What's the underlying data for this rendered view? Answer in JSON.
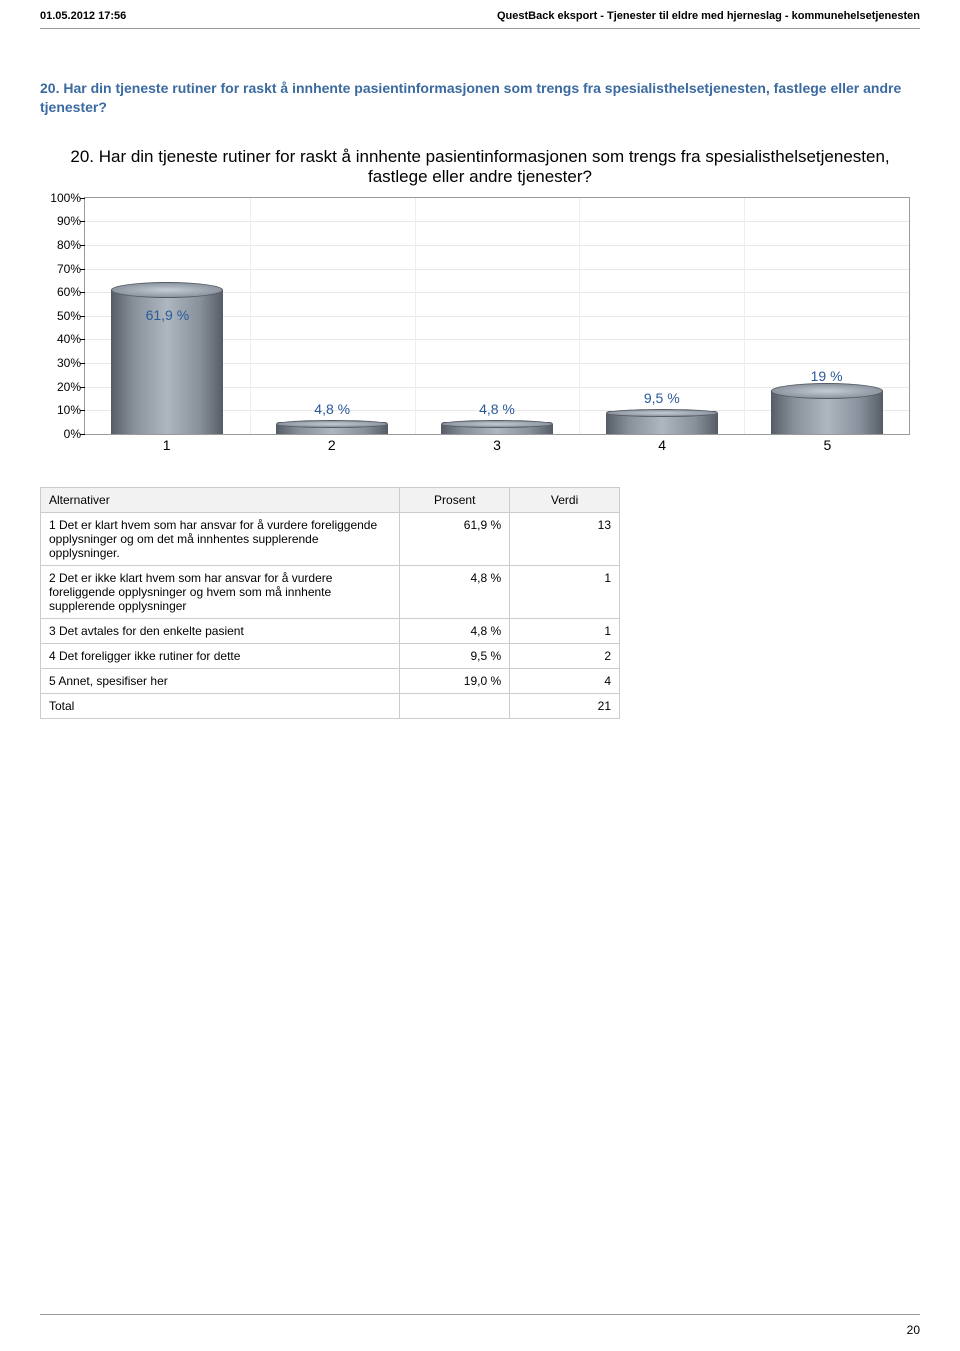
{
  "header": {
    "left": "01.05.2012 17:56",
    "right": "QuestBack eksport - Tjenester til eldre med hjerneslag - kommunehelsetjenesten"
  },
  "question_heading": "20. Har din tjeneste rutiner for raskt å innhente pasientinformasjonen som trengs fra spesialisthelsetjenesten, fastlege eller andre tjenester?",
  "chart": {
    "type": "bar",
    "title": "20. Har din tjeneste rutiner for raskt å innhente pasientinformasjonen som trengs fra spesialisthelsetjenesten, fastlege eller andre tjenester?",
    "categories": [
      "1",
      "2",
      "3",
      "4",
      "5"
    ],
    "values": [
      61.9,
      4.8,
      4.8,
      9.5,
      19.0
    ],
    "value_labels": [
      "61,9 %",
      "4,8 %",
      "4,8 %",
      "9,5 %",
      "19 %"
    ],
    "bar_color_gradient": [
      "#585f68",
      "#88909b",
      "#aeb6c0",
      "#88909b",
      "#585f68"
    ],
    "label_color": "#2a5a9a",
    "background_color": "#ffffff",
    "grid_color": "#e8e8e8",
    "border_color": "#9a9a9a",
    "ylim": [
      0,
      100
    ],
    "ytick_step": 10,
    "y_tick_labels": [
      "0%",
      "10%",
      "20%",
      "30%",
      "40%",
      "50%",
      "60%",
      "70%",
      "80%",
      "90%",
      "100%"
    ],
    "title_fontsize": 17,
    "axis_fontsize": 12,
    "value_label_fontsize": 14
  },
  "table": {
    "columns": [
      "Alternativer",
      "Prosent",
      "Verdi"
    ],
    "rows": [
      {
        "label": "1 Det er klart hvem som har ansvar for å vurdere foreliggende opplysninger og om det må innhentes supplerende opplysninger.",
        "pct": "61,9 %",
        "val": "13"
      },
      {
        "label": "2 Det er ikke klart hvem som har ansvar for å vurdere foreliggende opplysninger og hvem som må innhente supplerende opplysninger",
        "pct": "4,8 %",
        "val": "1"
      },
      {
        "label": "3 Det avtales for den enkelte pasient",
        "pct": "4,8 %",
        "val": "1"
      },
      {
        "label": "4 Det foreligger ikke rutiner for dette",
        "pct": "9,5 %",
        "val": "2"
      },
      {
        "label": "5 Annet, spesifiser her",
        "pct": "19,0 %",
        "val": "4"
      }
    ],
    "total_label": "Total",
    "total_value": "21",
    "header_bg": "#f2f2f2",
    "border_color": "#cccccc"
  },
  "page_number": "20"
}
